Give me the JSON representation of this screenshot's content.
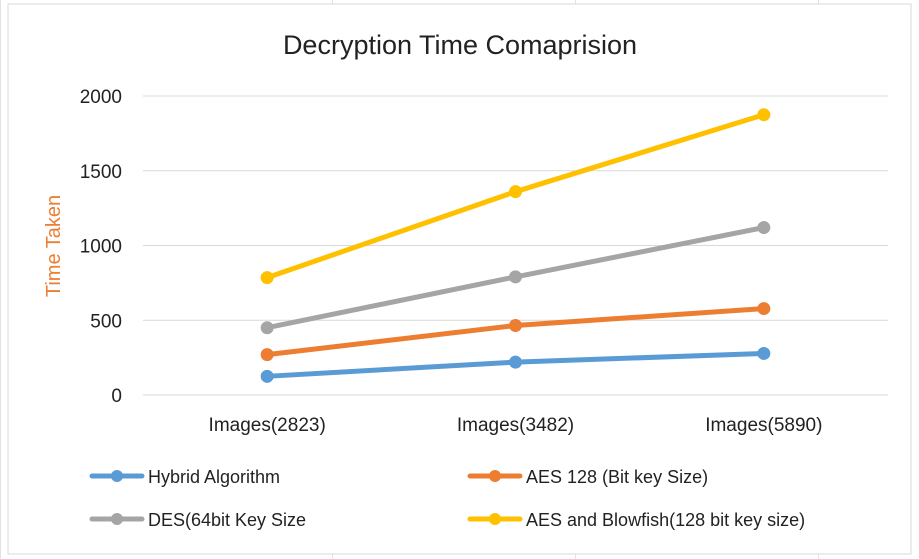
{
  "chart_data": {
    "type": "line",
    "title": "Decryption Time Comaprision",
    "xlabel": "",
    "ylabel": "Time Taken",
    "categories": [
      "Images(2823)",
      "Images(3482)",
      "Images(5890)"
    ],
    "ylim": [
      0,
      2000
    ],
    "yticks": [
      0,
      500,
      1000,
      1500,
      2000
    ],
    "grid": true,
    "legend_position": "bottom",
    "series": [
      {
        "name": "Hybrid Algorithm",
        "color": "#5B9BD5",
        "values": [
          125,
          220,
          278
        ]
      },
      {
        "name": "AES 128 (Bit key Size)",
        "color": "#ED7D31",
        "values": [
          270,
          465,
          578
        ]
      },
      {
        "name": "DES(64bit Key Size",
        "color": "#A5A5A5",
        "values": [
          450,
          790,
          1120
        ]
      },
      {
        "name": "AES and Blowfish(128 bit key size)",
        "color": "#FFC000",
        "values": [
          785,
          1360,
          1875
        ]
      }
    ]
  }
}
